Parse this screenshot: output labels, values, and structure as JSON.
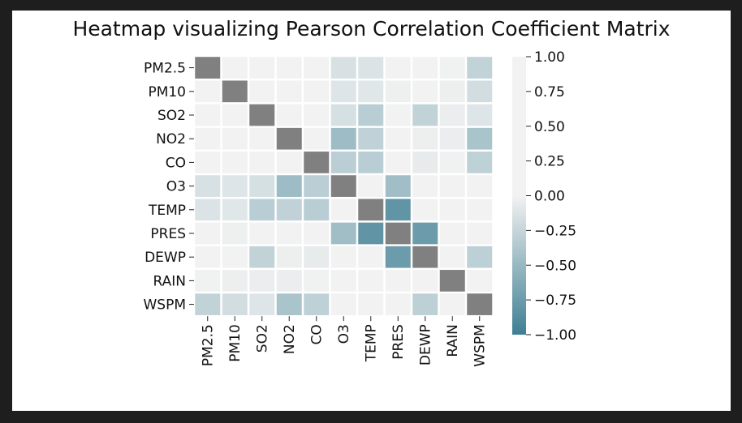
{
  "chart_data": {
    "type": "heatmap",
    "title": "Heatmap visualizing Pearson Correlation Coefficient Matrix",
    "variables": [
      "PM2.5",
      "PM10",
      "SO2",
      "NO2",
      "CO",
      "O3",
      "TEMP",
      "PRES",
      "DEWP",
      "RAIN",
      "WSPM"
    ],
    "diagonal_color": "#808080",
    "matrix": [
      [
        1.0,
        0.88,
        0.48,
        0.66,
        0.78,
        -0.15,
        -0.13,
        0.0,
        0.11,
        -0.01,
        -0.27
      ],
      [
        0.88,
        1.0,
        0.46,
        0.64,
        0.69,
        -0.11,
        -0.1,
        -0.02,
        0.06,
        -0.03,
        -0.18
      ],
      [
        0.48,
        0.46,
        1.0,
        0.49,
        0.52,
        -0.16,
        -0.32,
        0.22,
        -0.27,
        -0.04,
        -0.11
      ],
      [
        0.66,
        0.64,
        0.49,
        1.0,
        0.69,
        -0.47,
        -0.28,
        0.18,
        -0.03,
        -0.04,
        -0.4
      ],
      [
        0.78,
        0.69,
        0.52,
        0.69,
        1.0,
        -0.31,
        -0.32,
        0.19,
        -0.06,
        -0.01,
        -0.29
      ],
      [
        -0.15,
        -0.11,
        -0.16,
        -0.47,
        -0.31,
        1.0,
        0.59,
        -0.45,
        0.31,
        0.02,
        0.3
      ],
      [
        -0.13,
        -0.1,
        -0.32,
        -0.28,
        -0.32,
        0.59,
        1.0,
        -0.81,
        0.82,
        0.04,
        0.03
      ],
      [
        0.0,
        -0.02,
        0.22,
        0.18,
        0.19,
        -0.45,
        -0.81,
        1.0,
        -0.75,
        0.06,
        0.07
      ],
      [
        0.11,
        0.06,
        -0.27,
        -0.03,
        -0.06,
        0.31,
        0.82,
        -0.75,
        1.0,
        0.09,
        -0.3
      ],
      [
        -0.01,
        -0.03,
        -0.04,
        -0.04,
        -0.01,
        0.02,
        0.04,
        0.06,
        0.09,
        1.0,
        0.02
      ],
      [
        -0.27,
        -0.18,
        -0.11,
        -0.4,
        -0.29,
        0.3,
        0.03,
        0.07,
        -0.3,
        0.02,
        1.0
      ]
    ],
    "colorbar": {
      "range": [
        -1.0,
        1.0
      ],
      "ticks": [
        1.0,
        0.75,
        0.5,
        0.25,
        0.0,
        -0.25,
        -0.5,
        -0.75,
        -1.0
      ],
      "tick_labels": [
        "1.00",
        "0.75",
        "0.50",
        "0.25",
        "0.00",
        "−0.25",
        "−0.50",
        "−0.75",
        "−1.00"
      ],
      "color_low": "#3f7f93",
      "color_mid": "#f2f2f2",
      "color_high": "#f2f2f2"
    },
    "grid_line_color": "#ffffff"
  }
}
